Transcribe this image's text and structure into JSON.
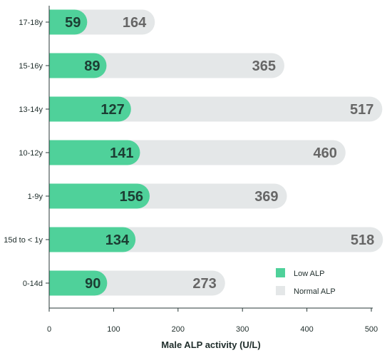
{
  "chart_data": {
    "type": "bar",
    "orientation": "horizontal",
    "categories": [
      "17-18y",
      "15-16y",
      "13-14y",
      "10-12y",
      "1-9y",
      "15d to < 1y",
      "0-14d"
    ],
    "series": [
      {
        "name": "Low ALP",
        "values": [
          59,
          89,
          127,
          141,
          156,
          134,
          90
        ],
        "color": "#4fd19a"
      },
      {
        "name": "Normal ALP",
        "values": [
          164,
          365,
          517,
          460,
          369,
          518,
          273
        ],
        "color": "#e4e7e8"
      }
    ],
    "xticks": [
      0,
      100,
      200,
      300,
      400,
      500
    ],
    "xlabel": "Male ALP activity (U/L)",
    "xlim": [
      0,
      500
    ],
    "legend_position": "bottom-right",
    "colors": {
      "low_text": "#1c3d33",
      "normal_text": "#666666",
      "axis": "#2a3a38"
    }
  }
}
